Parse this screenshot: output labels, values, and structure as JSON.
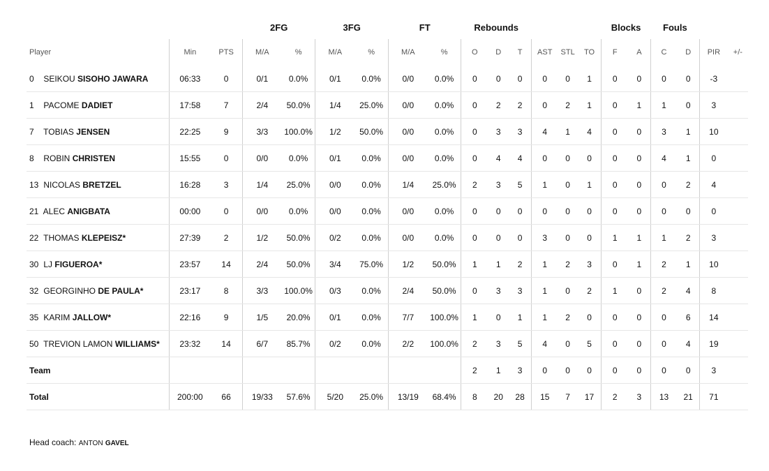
{
  "groups": {
    "fg2": "2FG",
    "fg3": "3FG",
    "ft": "FT",
    "rebounds": "Rebounds",
    "blocks": "Blocks",
    "fouls": "Fouls"
  },
  "columns": {
    "player": "Player",
    "min": "Min",
    "pts": "PTS",
    "fg2_ma": "M/A",
    "fg2_pct": "%",
    "fg3_ma": "M/A",
    "fg3_pct": "%",
    "ft_ma": "M/A",
    "ft_pct": "%",
    "reb_o": "O",
    "reb_d": "D",
    "reb_t": "T",
    "ast": "AST",
    "stl": "STL",
    "to": "TO",
    "blk_f": "F",
    "blk_a": "A",
    "foul_c": "C",
    "foul_d": "D",
    "pir": "PIR",
    "plusminus": "+/-"
  },
  "players": [
    {
      "num": "0",
      "first": "Seikou",
      "last": "Sisoho Jawara",
      "min": "06:33",
      "pts": "0",
      "fg2_ma": "0/1",
      "fg2_pct": "0.0%",
      "fg3_ma": "0/1",
      "fg3_pct": "0.0%",
      "ft_ma": "0/0",
      "ft_pct": "0.0%",
      "reb_o": "0",
      "reb_d": "0",
      "reb_t": "0",
      "ast": "0",
      "stl": "0",
      "to": "1",
      "blk_f": "0",
      "blk_a": "0",
      "foul_c": "0",
      "foul_d": "0",
      "pir": "-3",
      "plusminus": ""
    },
    {
      "num": "1",
      "first": "Pacome",
      "last": "Dadiet",
      "min": "17:58",
      "pts": "7",
      "fg2_ma": "2/4",
      "fg2_pct": "50.0%",
      "fg3_ma": "1/4",
      "fg3_pct": "25.0%",
      "ft_ma": "0/0",
      "ft_pct": "0.0%",
      "reb_o": "0",
      "reb_d": "2",
      "reb_t": "2",
      "ast": "0",
      "stl": "2",
      "to": "1",
      "blk_f": "0",
      "blk_a": "1",
      "foul_c": "1",
      "foul_d": "0",
      "pir": "3",
      "plusminus": ""
    },
    {
      "num": "7",
      "first": "Tobias",
      "last": "Jensen",
      "min": "22:25",
      "pts": "9",
      "fg2_ma": "3/3",
      "fg2_pct": "100.0%",
      "fg3_ma": "1/2",
      "fg3_pct": "50.0%",
      "ft_ma": "0/0",
      "ft_pct": "0.0%",
      "reb_o": "0",
      "reb_d": "3",
      "reb_t": "3",
      "ast": "4",
      "stl": "1",
      "to": "4",
      "blk_f": "0",
      "blk_a": "0",
      "foul_c": "3",
      "foul_d": "1",
      "pir": "10",
      "plusminus": ""
    },
    {
      "num": "8",
      "first": "Robin",
      "last": "Christen",
      "min": "15:55",
      "pts": "0",
      "fg2_ma": "0/0",
      "fg2_pct": "0.0%",
      "fg3_ma": "0/1",
      "fg3_pct": "0.0%",
      "ft_ma": "0/0",
      "ft_pct": "0.0%",
      "reb_o": "0",
      "reb_d": "4",
      "reb_t": "4",
      "ast": "0",
      "stl": "0",
      "to": "0",
      "blk_f": "0",
      "blk_a": "0",
      "foul_c": "4",
      "foul_d": "1",
      "pir": "0",
      "plusminus": ""
    },
    {
      "num": "13",
      "first": "Nicolas",
      "last": "Bretzel",
      "min": "16:28",
      "pts": "3",
      "fg2_ma": "1/4",
      "fg2_pct": "25.0%",
      "fg3_ma": "0/0",
      "fg3_pct": "0.0%",
      "ft_ma": "1/4",
      "ft_pct": "25.0%",
      "reb_o": "2",
      "reb_d": "3",
      "reb_t": "5",
      "ast": "1",
      "stl": "0",
      "to": "1",
      "blk_f": "0",
      "blk_a": "0",
      "foul_c": "0",
      "foul_d": "2",
      "pir": "4",
      "plusminus": ""
    },
    {
      "num": "21",
      "first": "Alec",
      "last": "Anigbata",
      "min": "00:00",
      "pts": "0",
      "fg2_ma": "0/0",
      "fg2_pct": "0.0%",
      "fg3_ma": "0/0",
      "fg3_pct": "0.0%",
      "ft_ma": "0/0",
      "ft_pct": "0.0%",
      "reb_o": "0",
      "reb_d": "0",
      "reb_t": "0",
      "ast": "0",
      "stl": "0",
      "to": "0",
      "blk_f": "0",
      "blk_a": "0",
      "foul_c": "0",
      "foul_d": "0",
      "pir": "0",
      "plusminus": ""
    },
    {
      "num": "22",
      "first": "Thomas",
      "last": "Klepeisz*",
      "min": "27:39",
      "pts": "2",
      "fg2_ma": "1/2",
      "fg2_pct": "50.0%",
      "fg3_ma": "0/2",
      "fg3_pct": "0.0%",
      "ft_ma": "0/0",
      "ft_pct": "0.0%",
      "reb_o": "0",
      "reb_d": "0",
      "reb_t": "0",
      "ast": "3",
      "stl": "0",
      "to": "0",
      "blk_f": "1",
      "blk_a": "1",
      "foul_c": "1",
      "foul_d": "2",
      "pir": "3",
      "plusminus": ""
    },
    {
      "num": "30",
      "first": "LJ",
      "last": "Figueroa*",
      "min": "23:57",
      "pts": "14",
      "fg2_ma": "2/4",
      "fg2_pct": "50.0%",
      "fg3_ma": "3/4",
      "fg3_pct": "75.0%",
      "ft_ma": "1/2",
      "ft_pct": "50.0%",
      "reb_o": "1",
      "reb_d": "1",
      "reb_t": "2",
      "ast": "1",
      "stl": "2",
      "to": "3",
      "blk_f": "0",
      "blk_a": "1",
      "foul_c": "2",
      "foul_d": "1",
      "pir": "10",
      "plusminus": ""
    },
    {
      "num": "32",
      "first": "Georginho",
      "last": "De Paula*",
      "min": "23:17",
      "pts": "8",
      "fg2_ma": "3/3",
      "fg2_pct": "100.0%",
      "fg3_ma": "0/3",
      "fg3_pct": "0.0%",
      "ft_ma": "2/4",
      "ft_pct": "50.0%",
      "reb_o": "0",
      "reb_d": "3",
      "reb_t": "3",
      "ast": "1",
      "stl": "0",
      "to": "2",
      "blk_f": "1",
      "blk_a": "0",
      "foul_c": "2",
      "foul_d": "4",
      "pir": "8",
      "plusminus": ""
    },
    {
      "num": "35",
      "first": "Karim",
      "last": "Jallow*",
      "min": "22:16",
      "pts": "9",
      "fg2_ma": "1/5",
      "fg2_pct": "20.0%",
      "fg3_ma": "0/1",
      "fg3_pct": "0.0%",
      "ft_ma": "7/7",
      "ft_pct": "100.0%",
      "reb_o": "1",
      "reb_d": "0",
      "reb_t": "1",
      "ast": "1",
      "stl": "2",
      "to": "0",
      "blk_f": "0",
      "blk_a": "0",
      "foul_c": "0",
      "foul_d": "6",
      "pir": "14",
      "plusminus": ""
    },
    {
      "num": "50",
      "first": "Trevion Lamon",
      "last": "Williams*",
      "min": "23:32",
      "pts": "14",
      "fg2_ma": "6/7",
      "fg2_pct": "85.7%",
      "fg3_ma": "0/2",
      "fg3_pct": "0.0%",
      "ft_ma": "2/2",
      "ft_pct": "100.0%",
      "reb_o": "2",
      "reb_d": "3",
      "reb_t": "5",
      "ast": "4",
      "stl": "0",
      "to": "5",
      "blk_f": "0",
      "blk_a": "0",
      "foul_c": "0",
      "foul_d": "4",
      "pir": "19",
      "plusminus": ""
    }
  ],
  "team": {
    "label": "Team",
    "min": "",
    "pts": "",
    "fg2_ma": "",
    "fg2_pct": "",
    "fg3_ma": "",
    "fg3_pct": "",
    "ft_ma": "",
    "ft_pct": "",
    "reb_o": "2",
    "reb_d": "1",
    "reb_t": "3",
    "ast": "0",
    "stl": "0",
    "to": "0",
    "blk_f": "0",
    "blk_a": "0",
    "foul_c": "0",
    "foul_d": "0",
    "pir": "3",
    "plusminus": ""
  },
  "total": {
    "label": "Total",
    "min": "200:00",
    "pts": "66",
    "fg2_ma": "19/33",
    "fg2_pct": "57.6%",
    "fg3_ma": "5/20",
    "fg3_pct": "25.0%",
    "ft_ma": "13/19",
    "ft_pct": "68.4%",
    "reb_o": "8",
    "reb_d": "20",
    "reb_t": "28",
    "ast": "15",
    "stl": "7",
    "to": "17",
    "blk_f": "2",
    "blk_a": "3",
    "foul_c": "13",
    "foul_d": "21",
    "pir": "71",
    "plusminus": ""
  },
  "coach": {
    "label": "Head coach:",
    "first": "Anton",
    "last": "Gavel"
  }
}
